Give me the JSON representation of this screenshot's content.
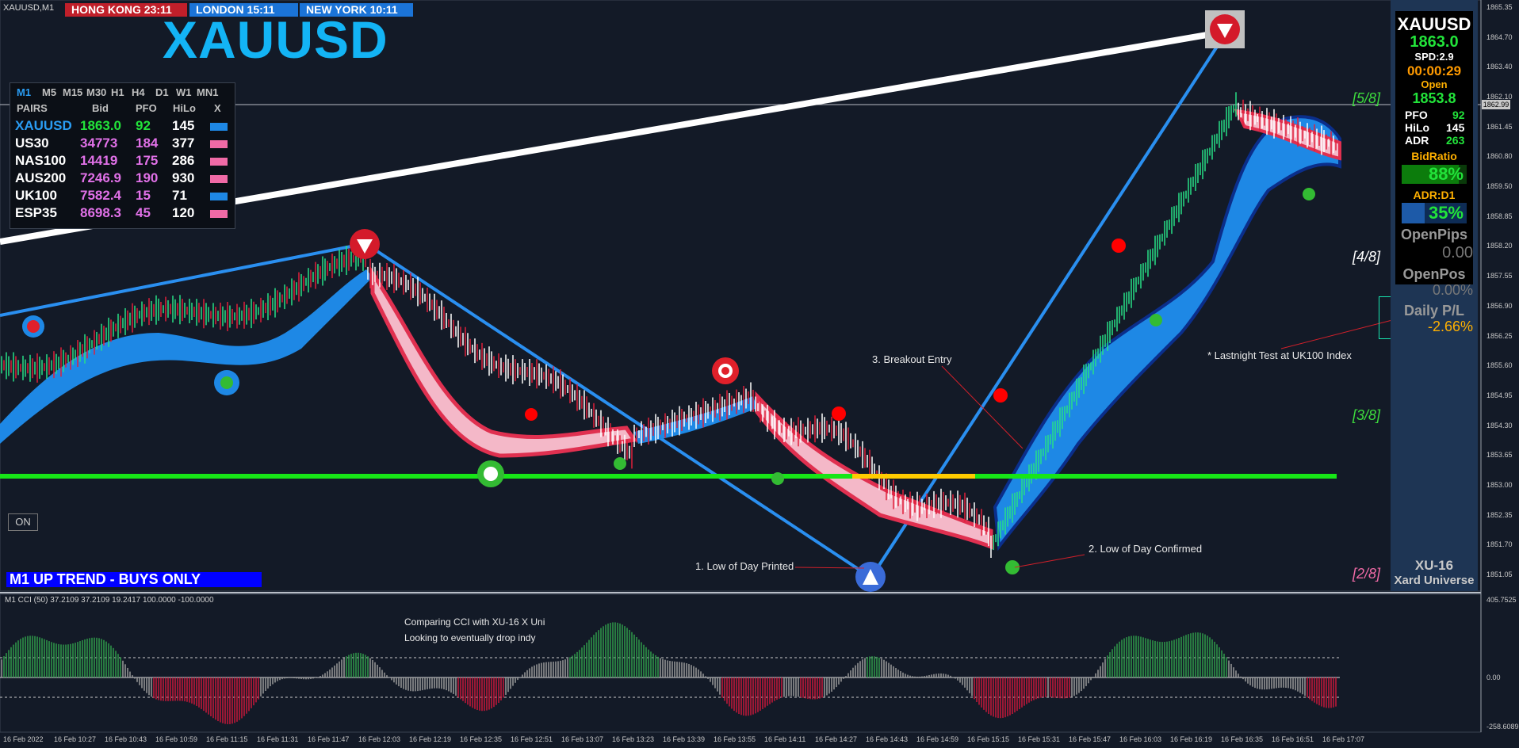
{
  "symbol_tag": "XAUUSD,M1",
  "sessions": [
    {
      "label": "HONG KONG 23:11",
      "color": "#c01f2a"
    },
    {
      "label": "LONDON  15:11",
      "color": "#1b74d8"
    },
    {
      "label": "NEW YORK 10:11",
      "color": "#1b74d8"
    }
  ],
  "big_symbol": "XAUUSD",
  "matrix": {
    "timeframes": [
      "M1",
      "M5",
      "M15",
      "M30",
      "H1",
      "H4",
      "D1",
      "W1",
      "MN1"
    ],
    "headers": [
      "PAIRS",
      "Bid",
      "PFO",
      "HiLo",
      "X"
    ],
    "rows": [
      {
        "pair": "XAUUSD",
        "bid": "1863.0",
        "pfo": "92",
        "hilo": "145",
        "x_color": "#1e88e5",
        "pair_color": "#2a9df4",
        "bid_color": "#22e33a",
        "pfo_color": "#22e33a"
      },
      {
        "pair": "US30",
        "bid": "34773",
        "pfo": "184",
        "hilo": "377",
        "x_color": "#f06aa6",
        "pair_color": "#ffffff",
        "bid_color": "#e171e8",
        "pfo_color": "#e171e8"
      },
      {
        "pair": "NAS100",
        "bid": "14419",
        "pfo": "175",
        "hilo": "286",
        "x_color": "#f06aa6",
        "pair_color": "#ffffff",
        "bid_color": "#e171e8",
        "pfo_color": "#e171e8"
      },
      {
        "pair": "AUS200",
        "bid": "7246.9",
        "pfo": "190",
        "hilo": "930",
        "x_color": "#f06aa6",
        "pair_color": "#ffffff",
        "bid_color": "#e171e8",
        "pfo_color": "#e171e8"
      },
      {
        "pair": "UK100",
        "bid": "7582.4",
        "pfo": "15",
        "hilo": "71",
        "x_color": "#1e88e5",
        "pair_color": "#ffffff",
        "bid_color": "#e171e8",
        "pfo_color": "#e171e8"
      },
      {
        "pair": "ESP35",
        "bid": "8698.3",
        "pfo": "45",
        "hilo": "120",
        "x_color": "#f06aa6",
        "pair_color": "#ffffff",
        "bid_color": "#e171e8",
        "pfo_color": "#e171e8"
      }
    ]
  },
  "info": {
    "symbol": "XAUUSD",
    "price": "1863.0",
    "spread": "SPD:2.9",
    "timer": "00:00:29",
    "open_label": "Open",
    "open_value": "1853.8",
    "pfo_label": "PFO",
    "pfo_value": "92",
    "hilo_label": "HiLo",
    "hilo_value": "145",
    "adr_label": "ADR",
    "adr_value": "263",
    "bidratio_label": "BidRatio",
    "bidratio_value": "88%",
    "bidratio_fill": 0.88,
    "adrd1_label": "ADR:D1",
    "adrd1_value": "35%",
    "adrd1_fill": 0.35,
    "openpips_label": "OpenPips",
    "openpips_value": "0.00",
    "openpos_label": "OpenPos",
    "openpos_value": "0.00%",
    "dailypl_label": "Daily P/L",
    "dailypl_value": "-2.66%",
    "brand": "XU-16",
    "brand_sub": "Xard Universe"
  },
  "trend_bar": "M1 UP TREND - BUYS ONLY",
  "on_button": "ON",
  "murrey": [
    {
      "label": "[5/8]",
      "color": "#3ddc3d"
    },
    {
      "label": "[4/8]",
      "color": "#ffffff"
    },
    {
      "label": "[3/8]",
      "color": "#3ddc3d"
    },
    {
      "label": "[2/8]",
      "color": "#f06aa6"
    }
  ],
  "annotations": {
    "breakout": "3. Breakout Entry",
    "low_printed": "1. Low of Day Printed",
    "low_confirmed": "2. Low of Day Confirmed",
    "lastnight": "* Lastnight Test at UK100 Index",
    "comment1": "Comparing CCI with XU-16 X Uni",
    "comment2": "Looking to eventually drop indy"
  },
  "price_axis": [
    "1865.35",
    "1864.70",
    "1863.40",
    "1862.10",
    "1861.45",
    "1860.80",
    "1859.50",
    "1858.85",
    "1858.20",
    "1857.55",
    "1856.90",
    "1856.25",
    "1855.60",
    "1854.95",
    "1854.30",
    "1853.65",
    "1853.00",
    "1852.35",
    "1851.70",
    "1851.05"
  ],
  "current_price_label": "1862.99",
  "cci": {
    "label": "M1  CCI  (50) 37.2109 37.2109 19.2417 100.0000 -100.0000",
    "axis": [
      "405.7525",
      "0.00",
      "-258.6089"
    ]
  },
  "time_axis": [
    "16 Feb 2022",
    "16 Feb 10:27",
    "16 Feb 10:43",
    "16 Feb 10:59",
    "16 Feb 11:15",
    "16 Feb 11:31",
    "16 Feb 11:47",
    "16 Feb 12:03",
    "16 Feb 12:19",
    "16 Feb 12:35",
    "16 Feb 12:51",
    "16 Feb 13:07",
    "16 Feb 13:23",
    "16 Feb 13:39",
    "16 Feb 13:55",
    "16 Feb 14:11",
    "16 Feb 14:27",
    "16 Feb 14:43",
    "16 Feb 14:59",
    "16 Feb 15:15",
    "16 Feb 15:31",
    "16 Feb 15:47",
    "16 Feb 16:03",
    "16 Feb 16:19",
    "16 Feb 16:35",
    "16 Feb 16:51",
    "16 Feb 17:07"
  ],
  "colors": {
    "bull_band": "#1e88e5",
    "bear_band": "#e03050",
    "support": "#17e617",
    "trendline": "#2a8ff0"
  }
}
